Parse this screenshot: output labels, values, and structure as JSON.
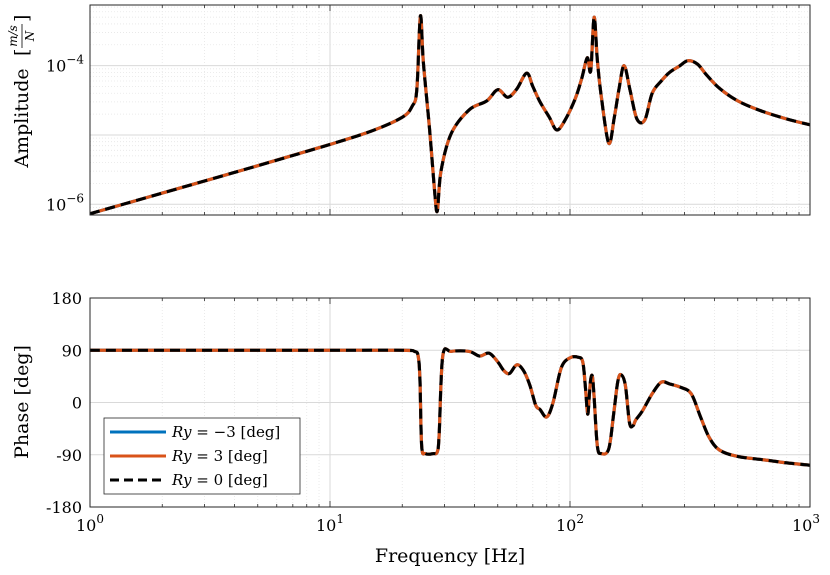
{
  "chart_data": [
    {
      "type": "line",
      "panel": "amplitude",
      "ylabel": "Amplitude [m/s / N]",
      "ylabel_parts": {
        "main": "Amplitude",
        "unit_num": "m/s",
        "unit_den": "N"
      },
      "xscale": "log",
      "yscale": "log",
      "xlim": [
        1,
        1000
      ],
      "ylim": [
        7e-07,
        0.00075
      ],
      "yticks": [
        1e-06,
        0.0001
      ],
      "ytick_labels": [
        {
          "base": "10",
          "exp": "−6"
        },
        {
          "base": "10",
          "exp": "−4"
        }
      ],
      "grid": true,
      "series": [
        {
          "name": "Ry = −3 [deg]",
          "color": "#0072BD",
          "style": "solid"
        },
        {
          "name": "Ry = 3 [deg]",
          "color": "#D95319",
          "style": "solid"
        },
        {
          "name": "Ry = 0 [deg]",
          "color": "#000000",
          "style": "dashed"
        }
      ],
      "x": [
        1,
        2,
        5,
        10,
        15,
        20,
        22,
        23,
        23.8,
        24.5,
        26,
        27.3,
        28,
        29,
        32,
        38,
        45,
        50,
        55,
        60,
        66,
        70,
        75,
        82,
        88,
        95,
        105,
        112,
        118,
        122,
        126,
        130,
        135,
        145,
        153,
        160,
        168,
        178,
        190,
        205,
        220,
        240,
        260,
        285,
        310,
        340,
        370,
        420,
        500,
        620,
        800,
        1000
      ],
      "y": [
        7.3e-07,
        1.45e-06,
        3.6e-06,
        7.3e-06,
        1.15e-05,
        1.8e-05,
        2.6e-05,
        4.5e-05,
        0.00052,
        0.00011,
        1.2e-05,
        1.5e-06,
        8e-07,
        3e-06,
        1.05e-05,
        2.3e-05,
        3.1e-05,
        4.5e-05,
        3.5e-05,
        4.6e-05,
        7.8e-05,
        5e-05,
        3e-05,
        1.8e-05,
        1.18e-05,
        1.6e-05,
        3.3e-05,
        6.6e-05,
        0.00013,
        8.4e-05,
        0.0005,
        0.00012,
        3.6e-05,
        7.6e-06,
        1.8e-05,
        4.6e-05,
        0.0001,
        4.4e-05,
        1.7e-05,
        1.65e-05,
        4e-05,
        6e-05,
        8e-05,
        9.8e-05,
        0.000118,
        0.000105,
        7.4e-05,
        4.7e-05,
        3.1e-05,
        2.25e-05,
        1.7e-05,
        1.4e-05
      ]
    },
    {
      "type": "line",
      "panel": "phase",
      "xlabel": "Frequency [Hz]",
      "ylabel": "Phase [deg]",
      "xscale": "log",
      "xlim": [
        1,
        1000
      ],
      "ylim": [
        -180,
        180
      ],
      "yticks": [
        -180,
        -90,
        0,
        90,
        180
      ],
      "ytick_labels": [
        "-180",
        "-90",
        "0",
        "90",
        "180"
      ],
      "xticks": [
        1,
        10,
        100,
        1000
      ],
      "xtick_labels": [
        {
          "base": "10",
          "exp": "0"
        },
        {
          "base": "10",
          "exp": "1"
        },
        {
          "base": "10",
          "exp": "2"
        },
        {
          "base": "10",
          "exp": "3"
        }
      ],
      "grid": true,
      "legend": {
        "placement": "bottom-left"
      },
      "series": [
        {
          "name": "Ry = −3 [deg]",
          "label_html": {
            "var": "Ry",
            "rest": " = −3 [deg]"
          },
          "color": "#0072BD",
          "style": "solid"
        },
        {
          "name": "Ry = 3 [deg]",
          "label_html": {
            "var": "Ry",
            "rest": " = 3 [deg]"
          },
          "color": "#D95319",
          "style": "solid"
        },
        {
          "name": "Ry = 0 [deg]",
          "label_html": {
            "var": "Ry",
            "rest": " = 0 [deg]"
          },
          "color": "#000000",
          "style": "dashed"
        }
      ],
      "x": [
        1,
        5,
        10,
        20,
        22.5,
        23.3,
        23.7,
        24.1,
        25,
        27,
        28,
        28.5,
        29.5,
        32,
        38,
        42,
        46,
        50,
        53,
        56,
        60,
        64,
        68,
        72,
        75,
        80,
        85,
        92,
        100,
        108,
        113,
        116,
        118.5,
        120.5,
        122,
        124,
        126,
        130,
        135,
        145,
        152,
        158,
        163,
        170,
        177,
        183,
        188,
        200,
        220,
        240,
        260,
        290,
        320,
        350,
        380,
        420,
        500,
        650,
        800,
        1000
      ],
      "y": [
        90,
        90,
        90,
        90,
        88,
        80,
        40,
        -75,
        -88,
        -88,
        -85,
        -55,
        80,
        88,
        88,
        80,
        85,
        70,
        55,
        50,
        65,
        55,
        30,
        -5,
        -12,
        -25,
        0,
        60,
        77,
        78,
        70,
        25,
        -20,
        15,
        40,
        45,
        10,
        -75,
        -88,
        -80,
        -20,
        35,
        48,
        30,
        -35,
        -40,
        -30,
        -15,
        15,
        35,
        32,
        26,
        15,
        -25,
        -60,
        -82,
        -93,
        -99,
        -104,
        -108
      ]
    }
  ]
}
